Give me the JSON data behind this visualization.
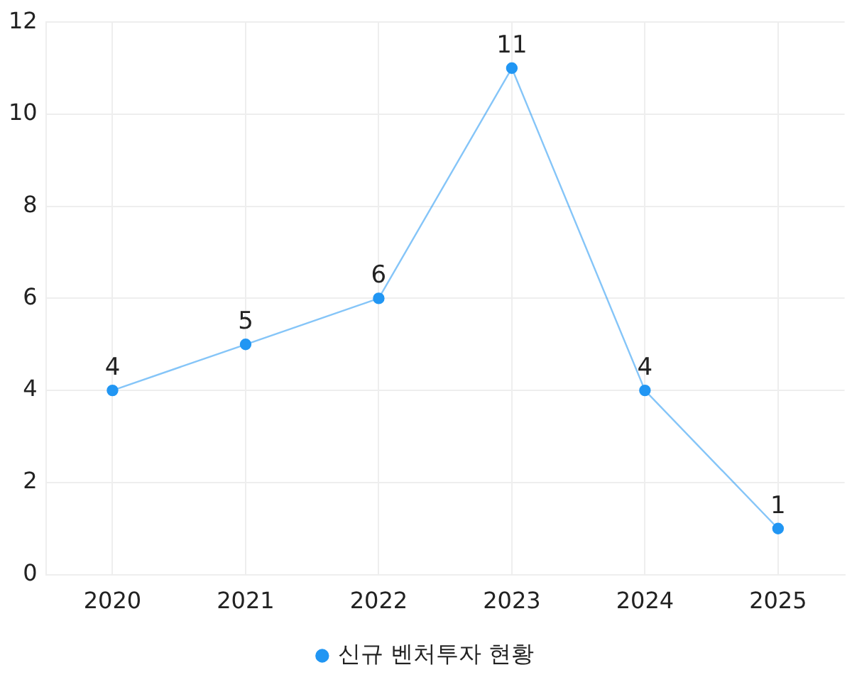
{
  "chart_data": {
    "type": "line",
    "categories": [
      "2020",
      "2021",
      "2022",
      "2023",
      "2024",
      "2025"
    ],
    "series": [
      {
        "name": "신규 벤처투자 현황",
        "color": "#2196f3",
        "values": [
          4,
          5,
          6,
          11,
          4,
          1
        ]
      }
    ],
    "ylim": [
      0,
      12
    ],
    "yticks": [
      0,
      2,
      4,
      6,
      8,
      10,
      12
    ],
    "grid": true,
    "legend": "bottom",
    "marker": "circle",
    "line_style": "solid",
    "data_labels": true
  }
}
